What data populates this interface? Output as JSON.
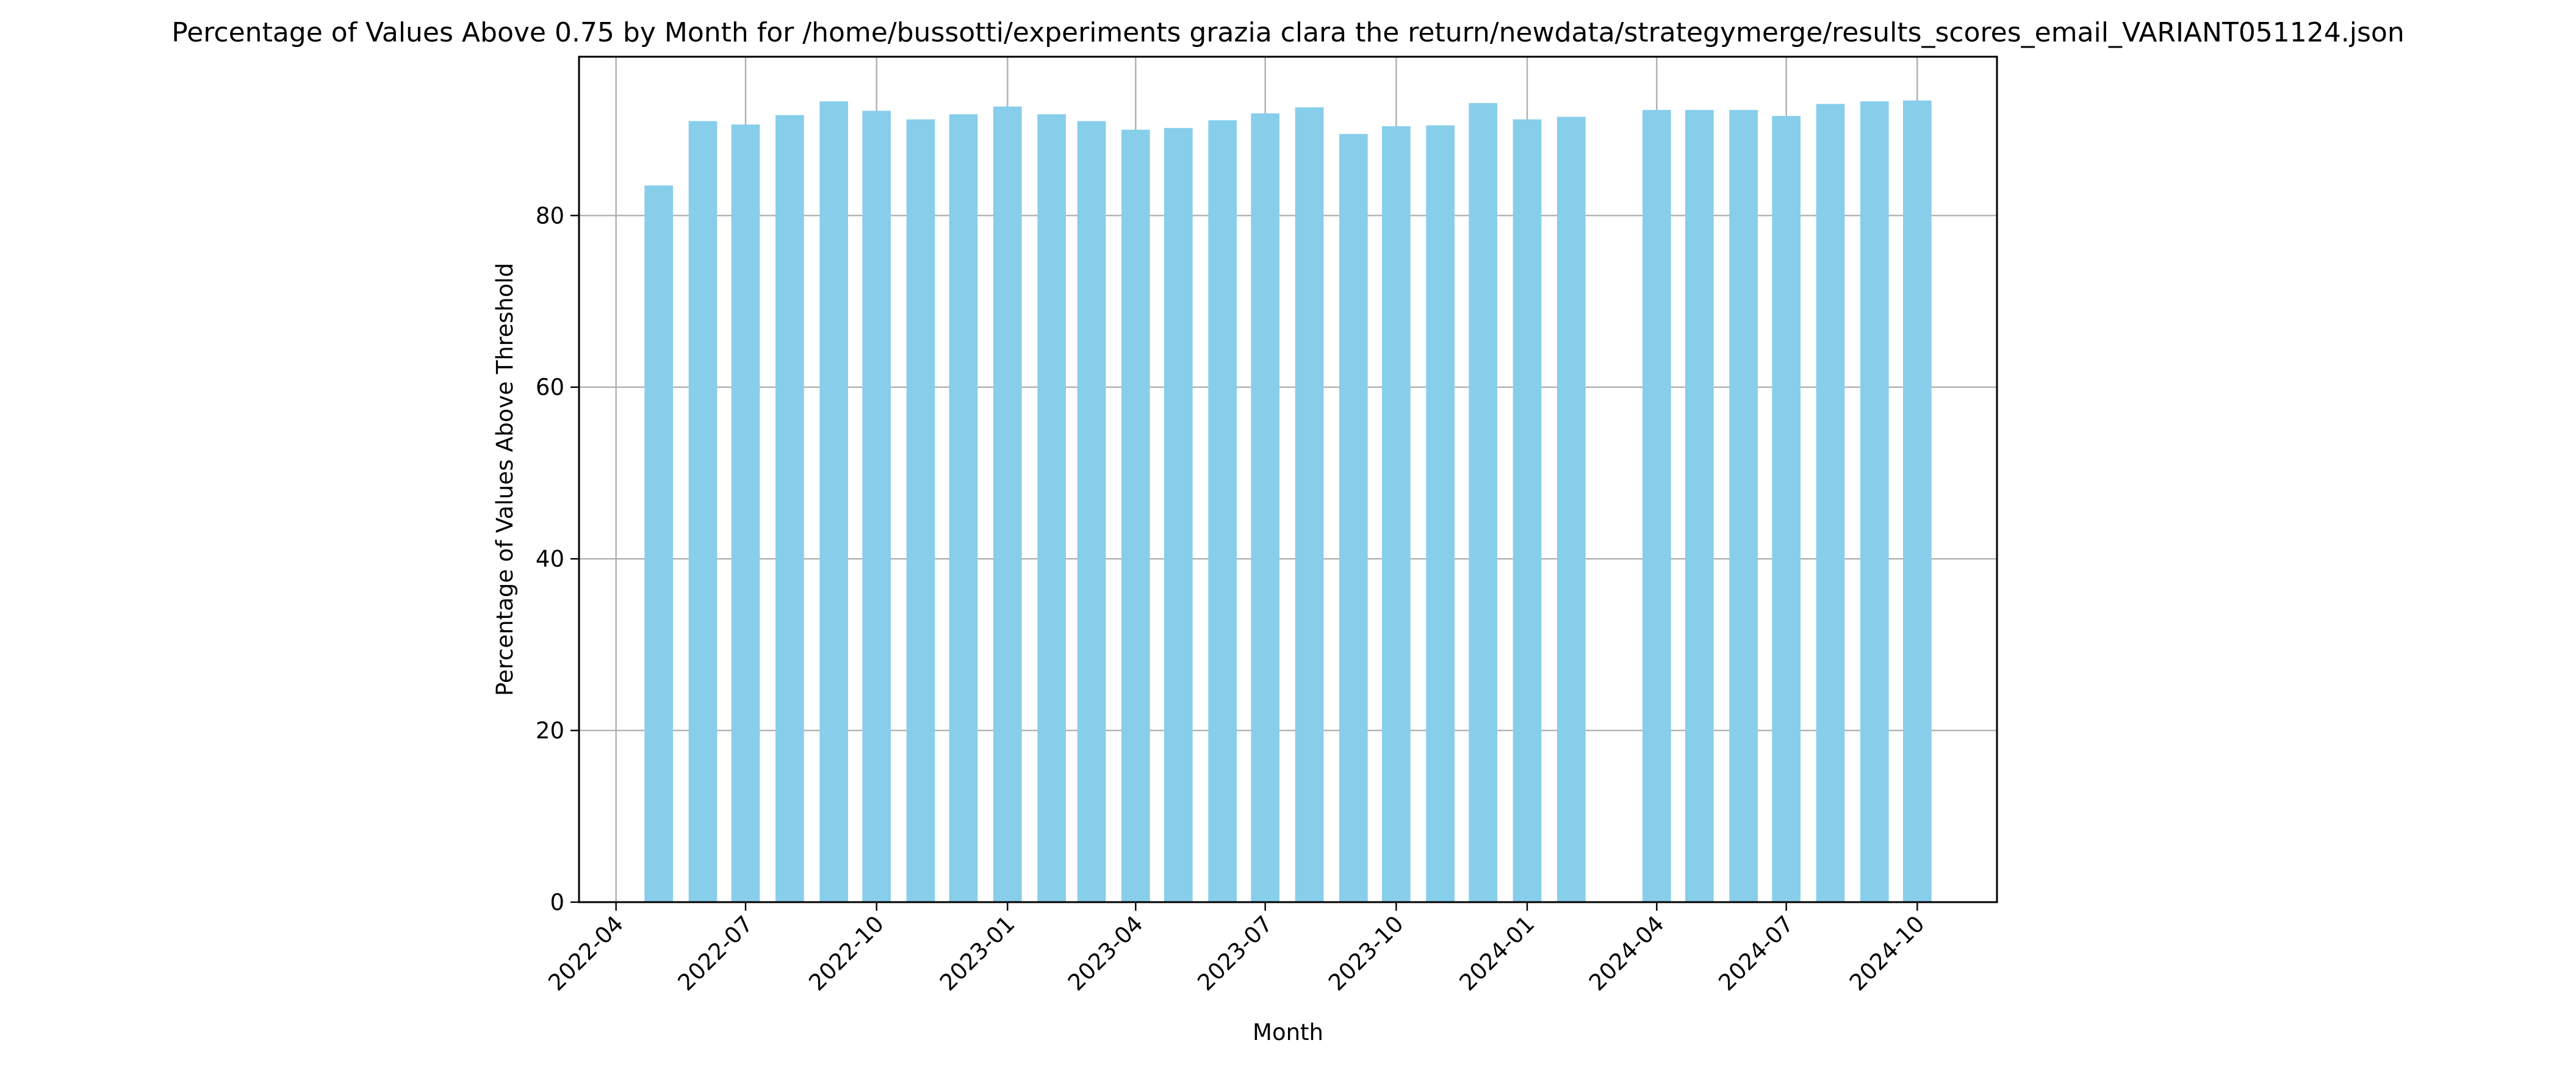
{
  "chart_data": {
    "type": "bar",
    "title": "Percentage of Values Above 0.75 by Month for /home/bussotti/experiments grazia clara the return/newdata/strategymerge/results_scores_email_VARIANT051124.json",
    "xlabel": "Month",
    "ylabel": "Percentage of Values Above Threshold",
    "ylim": [
      0,
      98.5
    ],
    "xlim": [
      "2022-03-06",
      "2024-11-26"
    ],
    "yticks": [
      0,
      20,
      40,
      60,
      80
    ],
    "xticks": [
      "2022-04",
      "2022-07",
      "2022-10",
      "2023-01",
      "2023-04",
      "2023-07",
      "2023-10",
      "2024-01",
      "2024-04",
      "2024-07",
      "2024-10"
    ],
    "grid": true,
    "bar_color": "#87CEEB",
    "bars": [
      {
        "x": "2022-05-01",
        "value": 83.5
      },
      {
        "x": "2022-06-01",
        "value": 91.0
      },
      {
        "x": "2022-07-01",
        "value": 90.6
      },
      {
        "x": "2022-08-01",
        "value": 91.7
      },
      {
        "x": "2022-09-01",
        "value": 93.3
      },
      {
        "x": "2022-10-01",
        "value": 92.2
      },
      {
        "x": "2022-11-01",
        "value": 91.2
      },
      {
        "x": "2022-12-01",
        "value": 91.8
      },
      {
        "x": "2023-01-01",
        "value": 92.7
      },
      {
        "x": "2023-02-01",
        "value": 91.8
      },
      {
        "x": "2023-03-01",
        "value": 91.0
      },
      {
        "x": "2023-04-01",
        "value": 90.0
      },
      {
        "x": "2023-05-01",
        "value": 90.2
      },
      {
        "x": "2023-06-01",
        "value": 91.1
      },
      {
        "x": "2023-07-01",
        "value": 91.9
      },
      {
        "x": "2023-08-01",
        "value": 92.6
      },
      {
        "x": "2023-09-01",
        "value": 89.5
      },
      {
        "x": "2023-10-01",
        "value": 90.4
      },
      {
        "x": "2023-11-01",
        "value": 90.5
      },
      {
        "x": "2023-12-01",
        "value": 93.1
      },
      {
        "x": "2024-01-01",
        "value": 91.2
      },
      {
        "x": "2024-02-01",
        "value": 91.5
      },
      {
        "x": "2024-04-01",
        "value": 92.3
      },
      {
        "x": "2024-05-01",
        "value": 92.3
      },
      {
        "x": "2024-06-01",
        "value": 92.3
      },
      {
        "x": "2024-07-01",
        "value": 91.6
      },
      {
        "x": "2024-08-01",
        "value": 93.0
      },
      {
        "x": "2024-09-01",
        "value": 93.3
      },
      {
        "x": "2024-10-01",
        "value": 93.4
      }
    ]
  }
}
